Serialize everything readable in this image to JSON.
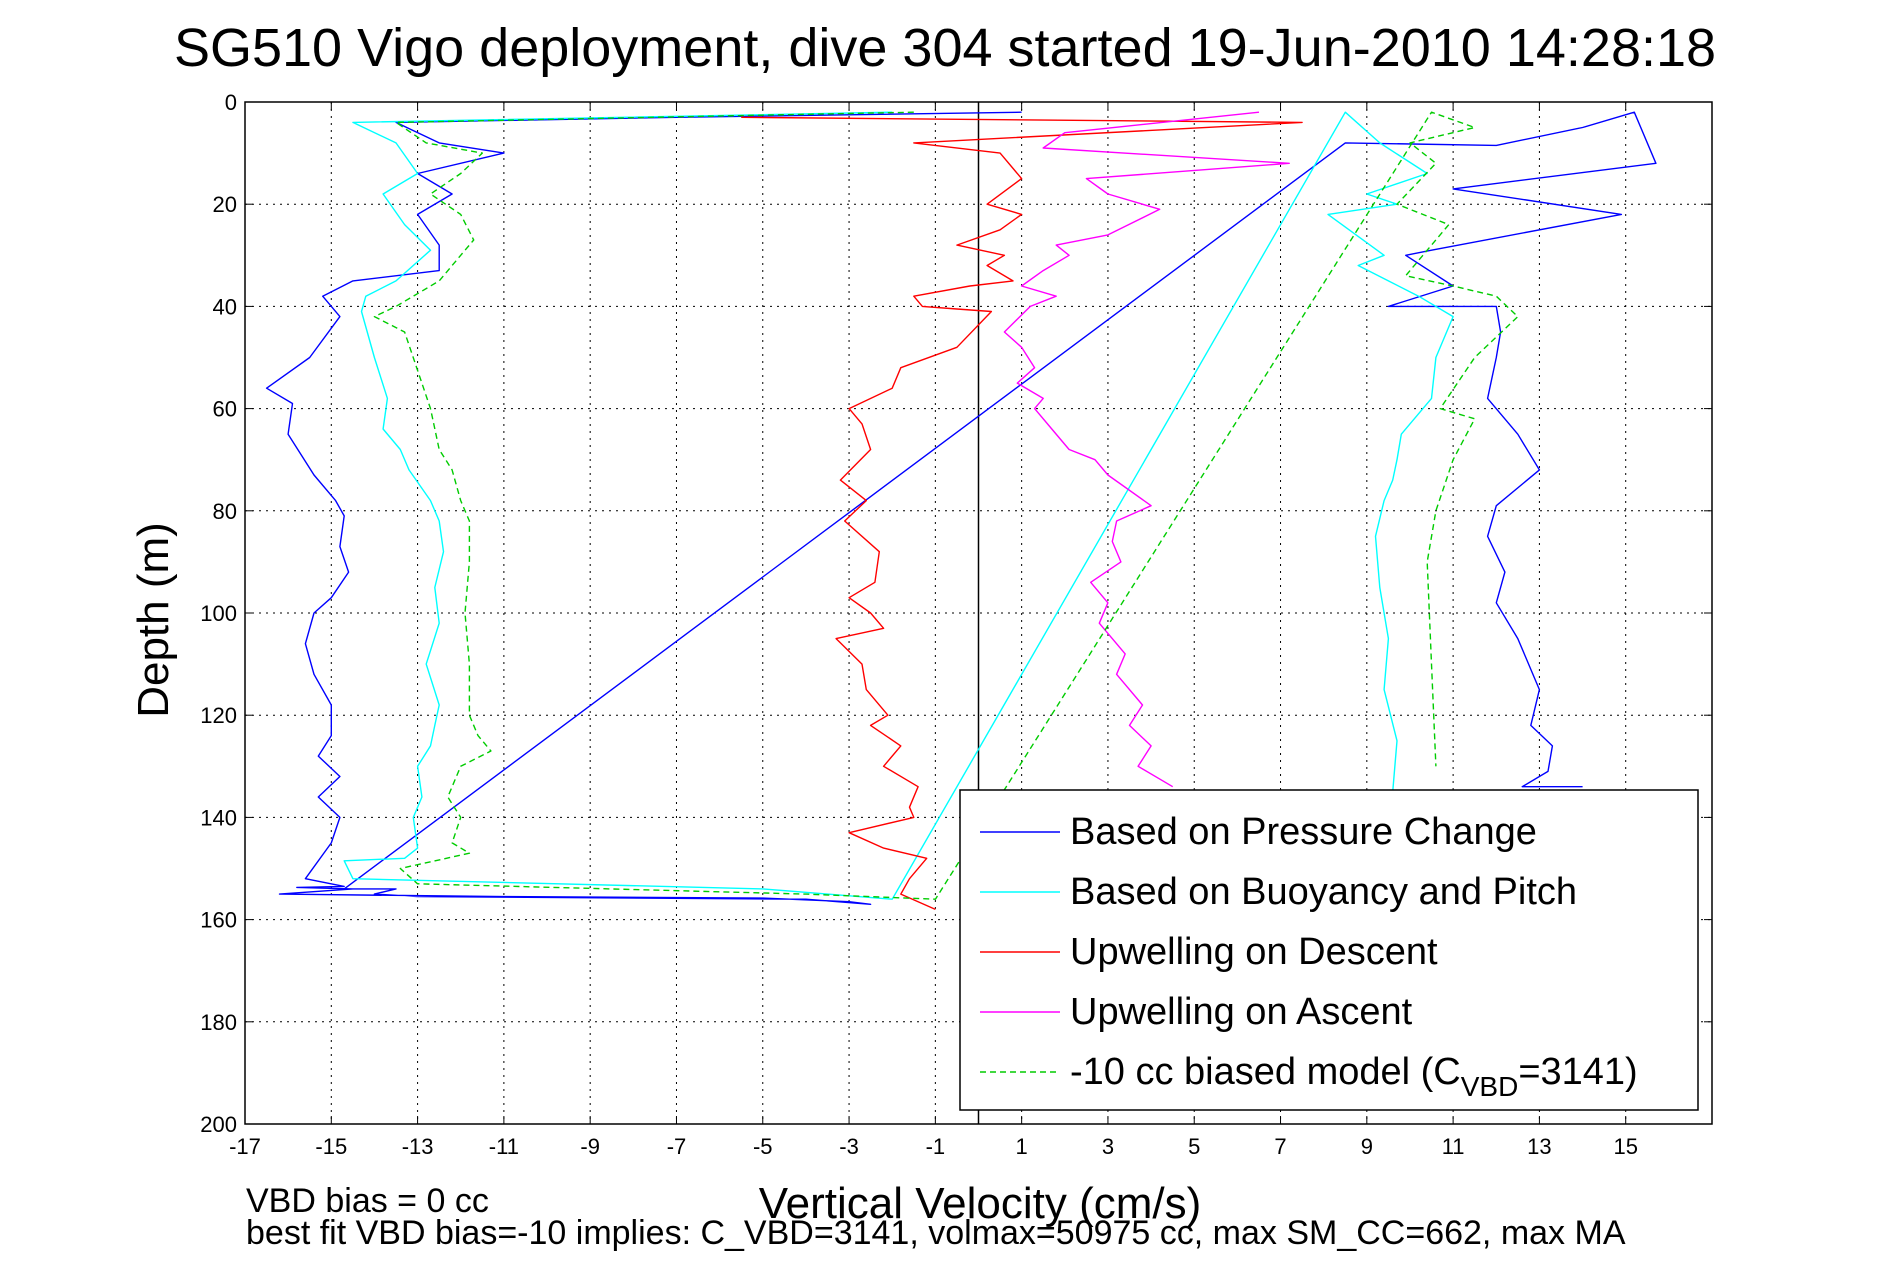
{
  "chart_data": {
    "type": "line",
    "title": "SG510 Vigo deployment, dive 304 started 19-Jun-2010 14:28:18",
    "xlabel": "Vertical Velocity (cm/s)",
    "ylabel": "Depth (m)",
    "xlim": [
      -17,
      17
    ],
    "ylim": [
      0,
      200
    ],
    "y_reversed": true,
    "grid": true,
    "xticks": [
      "-17",
      "-15",
      "-13",
      "-11",
      "-9",
      "-7",
      "-5",
      "-3",
      "-1",
      "1",
      "3",
      "5",
      "7",
      "9",
      "11",
      "13",
      "15"
    ],
    "yticks": [
      "0",
      "20",
      "40",
      "60",
      "80",
      "100",
      "120",
      "140",
      "160",
      "180",
      "200"
    ],
    "reference_line_x": 0,
    "legend_position": "bottom-right",
    "legend_subscript_text": "VBD",
    "series": [
      {
        "name": "Based on Pressure Change",
        "color": "#0000ff",
        "style": "solid",
        "x": [
          1,
          -7,
          -13.5,
          -12.5,
          -11,
          -13,
          -12.2,
          -13,
          -12.5,
          -12.5,
          -14.5,
          -15.2,
          -14.8,
          -15.5,
          -16.5,
          -15.9,
          -16.0,
          -15.4,
          -14.9,
          -14.7,
          -14.8,
          -14.6,
          -15.0,
          -15.4,
          -15.6,
          -15.4,
          -15.0,
          -15.0,
          -15.3,
          -14.8,
          -15.3,
          -14.8,
          -15.0,
          -15.6,
          -14.7,
          -15.8,
          -14.5,
          -16.2,
          -11.0,
          -5.0,
          -3.0,
          -2.5,
          -4.0,
          -13.0,
          -14.0,
          -13.5,
          -14.7,
          8.5,
          12.0,
          14.0,
          15.2,
          15.7,
          11.0,
          14.9,
          10.5,
          9.9,
          11.0,
          9.5,
          12.0,
          12.1,
          12.0,
          11.8,
          12.5,
          13.0,
          12.0,
          11.8,
          12.2,
          12.0,
          12.5,
          13.0,
          12.8,
          13.3,
          13.2,
          12.6,
          14.0
        ],
        "y": [
          2,
          3,
          4,
          8,
          10,
          14,
          18,
          22,
          28,
          33,
          35,
          38,
          42,
          50,
          56,
          59,
          65,
          73,
          78,
          81,
          87,
          92,
          97,
          100,
          106,
          112,
          118,
          124,
          128,
          132,
          136,
          140,
          145,
          152,
          153.5,
          153.7,
          154,
          155,
          155.5,
          155.8,
          156.5,
          157,
          156,
          155.5,
          155,
          154,
          154,
          8,
          8.5,
          5,
          2,
          12,
          17,
          22,
          29,
          30,
          36,
          40,
          40,
          45,
          50,
          58,
          65,
          72,
          79,
          85,
          92,
          98,
          105,
          115,
          122,
          126,
          131,
          134,
          134
        ]
      },
      {
        "name": "Based on Buoyancy and Pitch",
        "color": "#00ffff",
        "style": "solid",
        "x": [
          -2,
          -14.5,
          -13.5,
          -13.0,
          -13.8,
          -13.3,
          -12.7,
          -13.5,
          -14.2,
          -14.3,
          -14.0,
          -13.7,
          -13.8,
          -13.4,
          -13.2,
          -12.7,
          -12.5,
          -12.4,
          -12.6,
          -12.5,
          -12.8,
          -12.5,
          -12.6,
          -12.7,
          -13.0,
          -12.9,
          -13.1,
          -13.0,
          -13.3,
          -14.7,
          -14.5,
          -5.0,
          -2.0,
          8.5,
          9.3,
          10.4,
          9.0,
          9.7,
          8.1,
          9.4,
          8.8,
          9.5,
          10.2,
          11.0,
          10.6,
          10.5,
          9.8,
          9.7,
          9.6,
          9.4,
          9.2,
          9.3,
          9.5,
          9.4,
          9.7,
          9.6
        ],
        "y": [
          2,
          4,
          8,
          14,
          18,
          24,
          29,
          35,
          38,
          41,
          50,
          58,
          64,
          68,
          72,
          78,
          82,
          88,
          95,
          102,
          110,
          118,
          122,
          126,
          130,
          136,
          140,
          146,
          148,
          148.5,
          152,
          154,
          156,
          2,
          8,
          14,
          18,
          20,
          22,
          30,
          32,
          35,
          38,
          42,
          50,
          58,
          65,
          70,
          74,
          78,
          85,
          95,
          105,
          115,
          125,
          135
        ]
      },
      {
        "name": "Upwelling on Descent",
        "color": "#ff0000",
        "style": "solid",
        "x": [
          -5.5,
          7.5,
          -1.5,
          0.5,
          1.0,
          0.2,
          1.0,
          0.5,
          -0.5,
          0.6,
          0.2,
          0.8,
          -0.2,
          -1.5,
          -1.3,
          -0.5,
          0.3,
          -0.5,
          -1.8,
          -2.0,
          -3.0,
          -2.7,
          -2.5,
          -3.2,
          -2.6,
          -3.1,
          -2.3,
          -2.4,
          -3.0,
          -2.5,
          -2.2,
          -3.3,
          -2.7,
          -2.6,
          -2.1,
          -2.5,
          -1.8,
          -2.2,
          -1.4,
          -1.6,
          -1.5,
          -3.0,
          -2.2,
          -1.2,
          -1.6,
          -1.8,
          -1.0
        ],
        "y": [
          3,
          4,
          8,
          10,
          15,
          20,
          22,
          25,
          28,
          30,
          32,
          35,
          36,
          38,
          40,
          40.5,
          41,
          48,
          52,
          56,
          60,
          63,
          68,
          74,
          78,
          82,
          88,
          94,
          97,
          100,
          103,
          105,
          110,
          115,
          120,
          122,
          126,
          130,
          134,
          138,
          140,
          143,
          146,
          148,
          152,
          155,
          158
        ]
      },
      {
        "name": "Upwelling on Ascent",
        "color": "#ff00ff",
        "style": "solid",
        "x": [
          6.5,
          2.0,
          1.5,
          7.2,
          2.5,
          3.0,
          4.2,
          3.0,
          1.8,
          2.1,
          1.5,
          1.0,
          1.8,
          1.2,
          0.6,
          1.0,
          1.3,
          0.9,
          1.5,
          1.3,
          1.7,
          2.1,
          2.7,
          3.0,
          4.0,
          3.2,
          3.1,
          3.3,
          2.6,
          3.0,
          2.8,
          3.4,
          3.2,
          3.8,
          3.5,
          4.0,
          3.7,
          4.5
        ],
        "y": [
          2,
          6,
          9,
          12,
          15,
          18,
          21,
          26,
          28,
          30,
          33,
          36,
          38,
          40,
          45,
          48,
          52,
          55,
          58,
          60,
          64,
          68,
          70,
          73,
          79,
          82,
          86,
          90,
          94,
          98,
          102,
          108,
          112,
          118,
          122,
          126,
          130,
          134
        ]
      },
      {
        "name": "-10 cc biased model (C_VBD=3141)",
        "color": "#00cc00",
        "style": "dashed",
        "x": [
          -1.5,
          -13.5,
          -12.8,
          -11.5,
          -12.0,
          -12.7,
          -12.0,
          -11.7,
          -12.0,
          -12.5,
          -13.5,
          -14.0,
          -13.3,
          -12.7,
          -12.5,
          -12.2,
          -12.0,
          -11.8,
          -11.8,
          -11.9,
          -11.8,
          -11.8,
          -11.6,
          -11.3,
          -12.0,
          -12.3,
          -12.0,
          -12.2,
          -11.8,
          -13.4,
          -13.0,
          -4.0,
          -1.0,
          10.5,
          11.5,
          10.0,
          10.6,
          9.7,
          10.9,
          10.3,
          9.9,
          11.0,
          12.0,
          12.5,
          11.5,
          10.7,
          11.5,
          11.0,
          10.8,
          10.6,
          10.4,
          10.5,
          10.6
        ],
        "y": [
          2,
          4,
          8,
          10,
          14,
          18,
          22,
          27,
          30,
          35,
          40,
          42,
          45,
          60,
          68,
          72,
          78,
          82,
          90,
          100,
          110,
          120,
          124,
          127,
          130,
          136,
          140,
          145,
          147,
          150,
          153,
          155,
          156,
          2,
          5,
          8,
          12,
          20,
          24,
          30,
          34,
          36,
          38,
          42,
          50,
          60,
          62,
          70,
          75,
          80,
          90,
          110,
          130
        ]
      }
    ]
  },
  "footer": {
    "line1": "VBD bias = 0 cc",
    "line2": "best fit VBD bias=-10 implies: C_VBD=3141, volmax=50975 cc, max SM_CC=662, max MA"
  }
}
